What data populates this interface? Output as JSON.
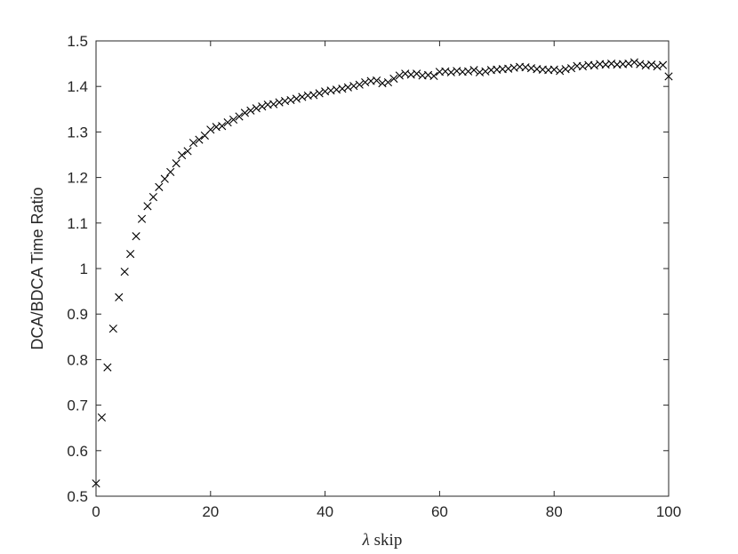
{
  "chart_data": {
    "type": "scatter",
    "marker": "x",
    "marker_color": "#000000",
    "xlabel_symbol": "λ",
    "xlabel_text": " skip",
    "ylabel": "DCA/BDCA Time Ratio",
    "xlim": [
      0,
      100
    ],
    "ylim": [
      0.5,
      1.5
    ],
    "grid": false,
    "box": true,
    "xticks": [
      0,
      20,
      40,
      60,
      80,
      100
    ],
    "xtick_labels": [
      "0",
      "20",
      "40",
      "60",
      "80",
      "100"
    ],
    "yticks": [
      0.5,
      0.6,
      0.7,
      0.8,
      0.9,
      1.0,
      1.1,
      1.2,
      1.3,
      1.4,
      1.5
    ],
    "ytick_labels": [
      "0.5",
      "0.6",
      "0.7",
      "0.8",
      "0.9",
      "1",
      "1.1",
      "1.2",
      "1.3",
      "1.4",
      "1.5"
    ],
    "x": [
      0,
      1,
      2,
      3,
      4,
      5,
      6,
      7,
      8,
      9,
      10,
      11,
      12,
      13,
      14,
      15,
      16,
      17,
      18,
      19,
      20,
      21,
      22,
      23,
      24,
      25,
      26,
      27,
      28,
      29,
      30,
      31,
      32,
      33,
      34,
      35,
      36,
      37,
      38,
      39,
      40,
      41,
      42,
      43,
      44,
      45,
      46,
      47,
      48,
      49,
      50,
      51,
      52,
      53,
      54,
      55,
      56,
      57,
      58,
      59,
      60,
      61,
      62,
      63,
      64,
      65,
      66,
      67,
      68,
      69,
      70,
      71,
      72,
      73,
      74,
      75,
      76,
      77,
      78,
      79,
      80,
      81,
      82,
      83,
      84,
      85,
      86,
      87,
      88,
      89,
      90,
      91,
      92,
      93,
      94,
      95,
      96,
      97,
      98,
      99,
      100
    ],
    "y": [
      0.528,
      0.673,
      0.783,
      0.868,
      0.937,
      0.993,
      1.032,
      1.071,
      1.109,
      1.137,
      1.157,
      1.179,
      1.197,
      1.212,
      1.231,
      1.249,
      1.258,
      1.276,
      1.283,
      1.292,
      1.305,
      1.311,
      1.313,
      1.321,
      1.327,
      1.334,
      1.342,
      1.347,
      1.352,
      1.356,
      1.36,
      1.361,
      1.365,
      1.368,
      1.37,
      1.373,
      1.377,
      1.38,
      1.381,
      1.385,
      1.389,
      1.391,
      1.393,
      1.395,
      1.398,
      1.401,
      1.404,
      1.409,
      1.412,
      1.413,
      1.407,
      1.409,
      1.417,
      1.424,
      1.428,
      1.426,
      1.428,
      1.424,
      1.425,
      1.423,
      1.432,
      1.433,
      1.431,
      1.434,
      1.432,
      1.433,
      1.436,
      1.431,
      1.433,
      1.436,
      1.437,
      1.438,
      1.439,
      1.441,
      1.443,
      1.442,
      1.44,
      1.438,
      1.437,
      1.436,
      1.437,
      1.434,
      1.438,
      1.44,
      1.445,
      1.444,
      1.447,
      1.446,
      1.449,
      1.448,
      1.45,
      1.448,
      1.449,
      1.45,
      1.453,
      1.449,
      1.446,
      1.448,
      1.444,
      1.447,
      1.422
    ]
  }
}
